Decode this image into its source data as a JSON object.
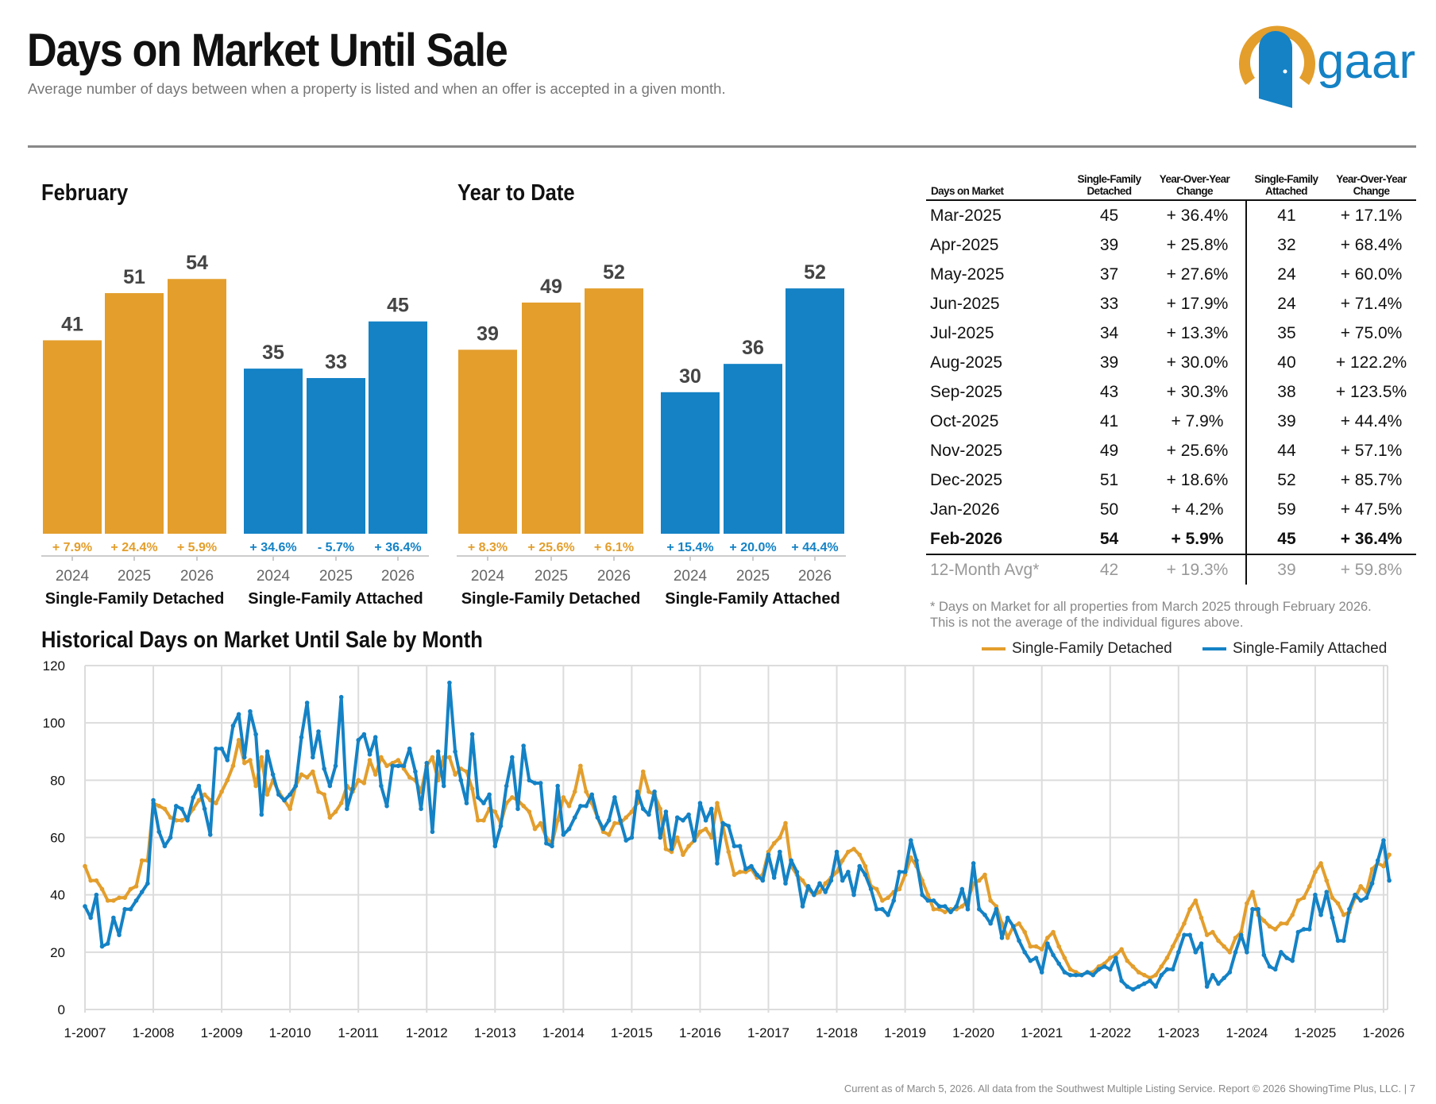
{
  "header": {
    "title": "Days on Market Until Sale",
    "subtitle": "Average number of days between when a property is listed and when an offer is accepted in a given month.",
    "logo_text": "gaar"
  },
  "colors": {
    "detached": "#E39E2C",
    "attached": "#1482C5",
    "grid": "#d9d9d9"
  },
  "chart_data": [
    {
      "type": "bar",
      "title": "February",
      "groups": [
        {
          "name": "Single-Family Detached",
          "color": "#E39E2C",
          "categories": [
            "2024",
            "2025",
            "2026"
          ],
          "values": [
            41,
            51,
            54
          ],
          "changes": [
            "+ 7.9%",
            "+ 24.4%",
            "+ 5.9%"
          ]
        },
        {
          "name": "Single-Family Attached",
          "color": "#1482C5",
          "categories": [
            "2024",
            "2025",
            "2026"
          ],
          "values": [
            35,
            33,
            45
          ],
          "changes": [
            "+ 34.6%",
            "- 5.7%",
            "+ 36.4%"
          ]
        }
      ]
    },
    {
      "type": "bar",
      "title": "Year to Date",
      "groups": [
        {
          "name": "Single-Family Detached",
          "color": "#E39E2C",
          "categories": [
            "2024",
            "2025",
            "2026"
          ],
          "values": [
            39,
            49,
            52
          ],
          "changes": [
            "+ 8.3%",
            "+ 25.6%",
            "+ 6.1%"
          ]
        },
        {
          "name": "Single-Family Attached",
          "color": "#1482C5",
          "categories": [
            "2024",
            "2025",
            "2026"
          ],
          "values": [
            30,
            36,
            52
          ],
          "changes": [
            "+ 15.4%",
            "+ 20.0%",
            "+ 44.4%"
          ]
        }
      ]
    },
    {
      "type": "table",
      "columns": [
        "Days on Market",
        "Single-Family Detached",
        "Year-Over-Year Change",
        "Single-Family Attached",
        "Year-Over-Year Change"
      ],
      "rows": [
        [
          "Mar-2025",
          "45",
          "+ 36.4%",
          "41",
          "+ 17.1%"
        ],
        [
          "Apr-2025",
          "39",
          "+ 25.8%",
          "32",
          "+ 68.4%"
        ],
        [
          "May-2025",
          "37",
          "+ 27.6%",
          "24",
          "+ 60.0%"
        ],
        [
          "Jun-2025",
          "33",
          "+ 17.9%",
          "24",
          "+ 71.4%"
        ],
        [
          "Jul-2025",
          "34",
          "+ 13.3%",
          "35",
          "+ 75.0%"
        ],
        [
          "Aug-2025",
          "39",
          "+ 30.0%",
          "40",
          "+ 122.2%"
        ],
        [
          "Sep-2025",
          "43",
          "+ 30.3%",
          "38",
          "+ 123.5%"
        ],
        [
          "Oct-2025",
          "41",
          "+ 7.9%",
          "39",
          "+ 44.4%"
        ],
        [
          "Nov-2025",
          "49",
          "+ 25.6%",
          "44",
          "+ 57.1%"
        ],
        [
          "Dec-2025",
          "51",
          "+ 18.6%",
          "52",
          "+ 85.7%"
        ],
        [
          "Jan-2026",
          "50",
          "+ 4.2%",
          "59",
          "+ 47.5%"
        ],
        [
          "Feb-2026",
          "54",
          "+ 5.9%",
          "45",
          "+ 36.4%"
        ]
      ],
      "summary_row": [
        "12-Month Avg*",
        "42",
        "+ 19.3%",
        "39",
        "+ 59.8%"
      ],
      "footnote": [
        "* Days on Market for all properties from March 2025 through February 2026.",
        "This is not the average of the individual figures above."
      ]
    },
    {
      "type": "line",
      "title": "Historical Days on Market Until Sale by Month",
      "x_start": "1-2007",
      "x_end": "2-2026",
      "x_ticks": [
        "1-2007",
        "1-2008",
        "1-2009",
        "1-2010",
        "1-2011",
        "1-2012",
        "1-2013",
        "1-2014",
        "1-2015",
        "1-2016",
        "1-2017",
        "1-2018",
        "1-2019",
        "1-2020",
        "1-2021",
        "1-2022",
        "1-2023",
        "1-2024",
        "1-2025",
        "1-2026"
      ],
      "y_ticks": [
        0,
        20,
        40,
        60,
        80,
        100,
        120
      ],
      "ylim": [
        0,
        120
      ],
      "grid": true,
      "legend": "top-right",
      "series": [
        {
          "name": "Single-Family Detached",
          "color": "#E39E2C",
          "values": [
            50,
            45,
            45,
            42,
            38,
            38,
            39,
            39,
            42,
            43,
            52,
            52,
            72,
            71,
            70,
            67,
            66,
            66,
            67,
            70,
            73,
            75,
            73,
            72,
            76,
            80,
            85,
            94,
            86,
            87,
            78,
            88,
            75,
            80,
            76,
            73,
            70,
            78,
            82,
            81,
            83,
            76,
            75,
            67,
            69,
            72,
            78,
            76,
            80,
            79,
            87,
            82,
            88,
            85,
            86,
            87,
            84,
            81,
            80,
            76,
            85,
            88,
            80,
            88,
            88,
            82,
            84,
            83,
            77,
            66,
            66,
            70,
            69,
            65,
            72,
            74,
            73,
            71,
            69,
            63,
            65,
            60,
            58,
            66,
            74,
            71,
            76,
            85,
            76,
            72,
            67,
            62,
            61,
            65,
            65,
            67,
            69,
            72,
            83,
            76,
            75,
            70,
            56,
            55,
            60,
            54,
            57,
            59,
            62,
            63,
            60,
            72,
            64,
            55,
            47,
            48,
            48,
            49,
            46,
            47,
            55,
            58,
            60,
            65,
            50,
            47,
            45,
            42,
            40,
            41,
            44,
            46,
            48,
            52,
            55,
            56,
            54,
            50,
            43,
            42,
            38,
            39,
            41,
            42,
            47,
            53,
            50,
            45,
            40,
            35,
            35,
            34,
            35,
            35,
            36,
            38,
            44,
            45,
            47,
            38,
            36,
            30,
            25,
            29,
            30,
            27,
            22,
            22,
            21,
            25,
            27,
            22,
            18,
            14,
            13,
            12,
            13,
            13,
            15,
            16,
            18,
            19,
            21,
            17,
            15,
            13,
            12,
            11,
            12,
            15,
            18,
            22,
            26,
            30,
            35,
            38,
            32,
            26,
            27,
            24,
            22,
            20,
            25,
            27,
            37,
            41,
            33,
            31,
            29,
            28,
            30,
            30,
            33,
            38,
            39,
            43,
            48,
            51,
            45,
            39,
            37,
            33,
            34,
            39,
            43,
            41,
            49,
            51,
            50,
            54
          ]
        },
        {
          "name": "Single-Family Attached",
          "color": "#1482C5",
          "values": [
            36,
            32,
            40,
            22,
            23,
            32,
            26,
            35,
            35,
            38,
            41,
            44,
            73,
            62,
            57,
            60,
            71,
            70,
            66,
            74,
            78,
            70,
            61,
            91,
            91,
            87,
            99,
            103,
            88,
            104,
            96,
            68,
            90,
            82,
            75,
            73,
            75,
            78,
            95,
            107,
            88,
            97,
            84,
            78,
            85,
            109,
            70,
            77,
            94,
            96,
            89,
            95,
            78,
            71,
            85,
            85,
            85,
            91,
            83,
            70,
            86,
            62,
            90,
            78,
            114,
            90,
            80,
            72,
            96,
            74,
            72,
            75,
            57,
            64,
            78,
            88,
            70,
            92,
            80,
            79,
            79,
            58,
            57,
            78,
            61,
            63,
            67,
            71,
            71,
            75,
            67,
            63,
            66,
            74,
            66,
            59,
            60,
            76,
            70,
            68,
            76,
            60,
            69,
            56,
            67,
            66,
            68,
            59,
            72,
            66,
            70,
            51,
            65,
            64,
            57,
            57,
            49,
            50,
            47,
            45,
            54,
            46,
            55,
            44,
            52,
            48,
            36,
            43,
            40,
            44,
            41,
            45,
            55,
            45,
            48,
            40,
            50,
            47,
            42,
            35,
            35,
            33,
            38,
            48,
            48,
            59,
            52,
            40,
            38,
            38,
            36,
            36,
            34,
            36,
            42,
            35,
            51,
            35,
            33,
            30,
            35,
            25,
            32,
            29,
            24,
            20,
            17,
            18,
            13,
            23,
            19,
            16,
            13,
            12,
            12,
            12,
            13,
            12,
            14,
            15,
            14,
            18,
            10,
            8,
            7,
            8,
            9,
            10,
            8,
            12,
            14,
            14,
            20,
            26,
            26,
            20,
            23,
            8,
            12,
            9,
            11,
            13,
            20,
            26,
            20,
            35,
            35,
            19,
            15,
            14,
            20,
            18,
            17,
            27,
            28,
            28,
            40,
            33,
            41,
            32,
            24,
            24,
            35,
            40,
            38,
            39,
            44,
            52,
            59,
            45
          ]
        }
      ]
    }
  ],
  "footer": "Current as of March 5, 2026. All data from the Southwest Multiple Listing Service. Report © 2026 ShowingTime Plus, LLC.  |  7"
}
